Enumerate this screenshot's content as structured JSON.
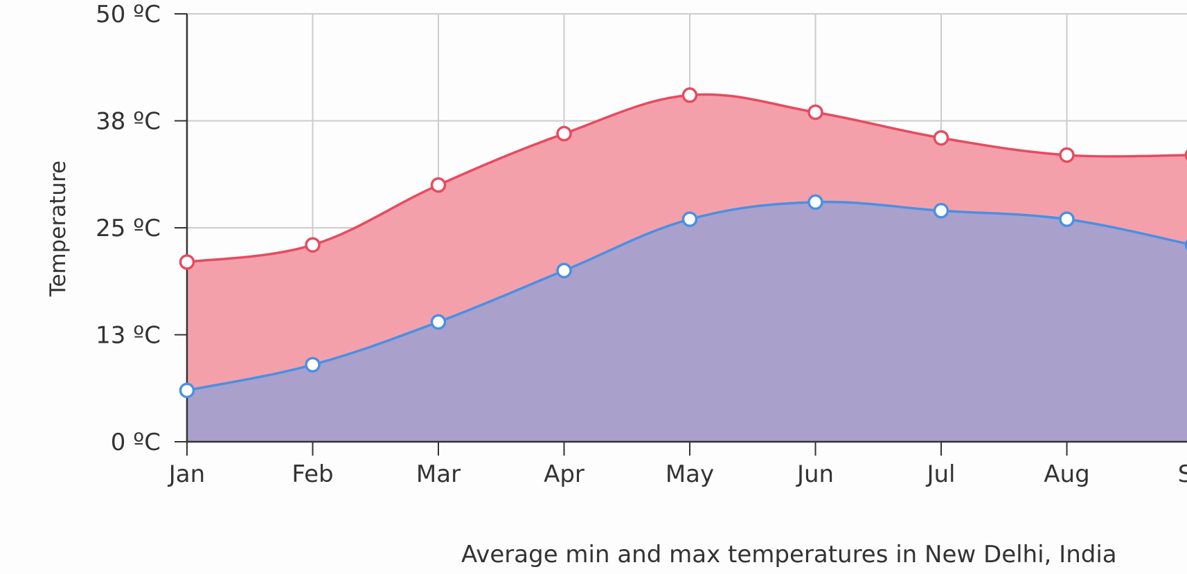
{
  "chart_data": {
    "type": "area",
    "categories": [
      "Jan",
      "Feb",
      "Mar",
      "Apr",
      "May",
      "Jun",
      "Jul",
      "Aug",
      "Sep"
    ],
    "x_tick_labels": [
      "Jan",
      "Feb",
      "Mar",
      "Apr",
      "May",
      "Jun",
      "Jul",
      "Aug",
      "Se"
    ],
    "series": [
      {
        "values": [
          21,
          23,
          30,
          36,
          40.5,
          38.5,
          35.5,
          33.5,
          33.5
        ],
        "line_color": "#e84a5f",
        "fill_color": "#f4a0ab"
      },
      {
        "values": [
          6,
          9,
          14,
          20,
          26,
          28,
          27,
          26,
          23
        ],
        "line_color": "#4a90e2",
        "fill_color": "#a9a0cc"
      }
    ],
    "y_ticks": [
      0,
      12.5,
      25,
      37.5,
      50
    ],
    "y_tick_labels": [
      "0 ºC",
      "13 ºC",
      "25 ºC",
      "38 ºC",
      "50 ºC"
    ],
    "ylim": [
      0,
      50
    ],
    "ylabel": "Temperature",
    "xlabel": "",
    "caption": "Average min and max temperatures in New Delhi, India",
    "grid": true,
    "colors": {
      "grid": "#cccccc",
      "axis": "#333333",
      "background": "#fdfdfd"
    }
  }
}
